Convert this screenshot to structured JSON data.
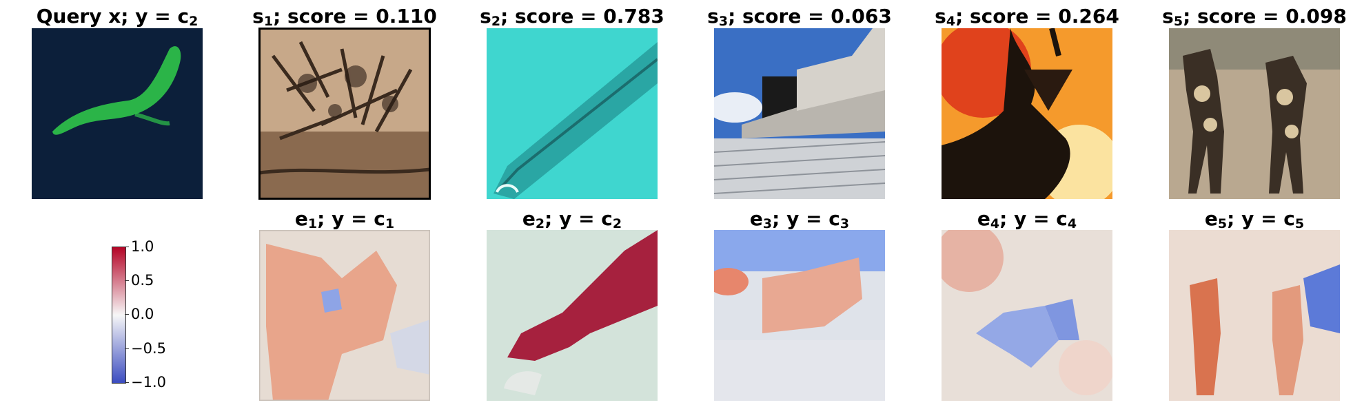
{
  "top_row": [
    {
      "prefix": "Query x; y = c",
      "sub": "2",
      "suffix": ""
    },
    {
      "prefix": "s",
      "sub": "1",
      "suffix": "; score = 0.110"
    },
    {
      "prefix": "s",
      "sub": "2",
      "suffix": "; score = 0.783"
    },
    {
      "prefix": "s",
      "sub": "3",
      "suffix": "; score = 0.063"
    },
    {
      "prefix": "s",
      "sub": "4",
      "suffix": "; score = 0.264"
    },
    {
      "prefix": "s",
      "sub": "5",
      "suffix": "; score = 0.098"
    }
  ],
  "bottom_row": [
    {
      "e_sub": "1",
      "mid": "; y = c",
      "c_sub": "1"
    },
    {
      "e_sub": "2",
      "mid": "; y = c",
      "c_sub": "2"
    },
    {
      "e_sub": "3",
      "mid": "; y = c",
      "c_sub": "3"
    },
    {
      "e_sub": "4",
      "mid": "; y = c",
      "c_sub": "4"
    },
    {
      "e_sub": "5",
      "mid": "; y = c",
      "c_sub": "5"
    }
  ],
  "colorbar": {
    "ticks": [
      "1.0",
      "0.5",
      "0.0",
      "−0.5",
      "−1.0"
    ],
    "colormap": [
      "#b40426",
      "#f7f7f7",
      "#3b4cc0"
    ]
  },
  "colors": {
    "query_bg": "#0c1f3a",
    "query_worm": "#2fc44a",
    "micro_bg": "#3fd6cf",
    "sky": "#3a6fc4",
    "fire": "#f59a2c",
    "positive": "#d6604d",
    "negative": "#4f73d9"
  }
}
